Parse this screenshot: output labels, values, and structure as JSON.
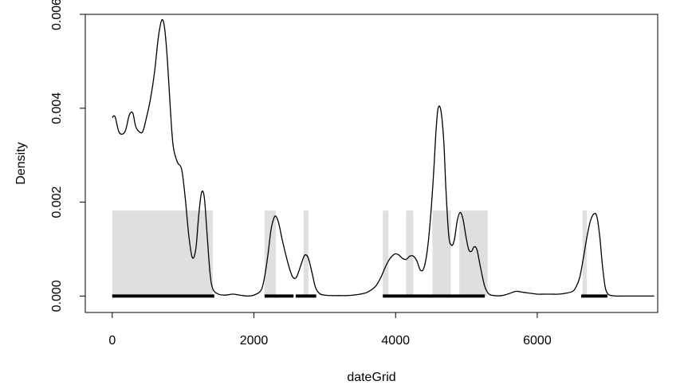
{
  "chart_data": {
    "type": "line",
    "title": "",
    "xlabel": "dateGrid",
    "ylabel": "Density",
    "xlim": [
      -380,
      7700
    ],
    "ylim": [
      -0.00035,
      0.006
    ],
    "x_ticks": [
      0,
      2000,
      4000,
      6000
    ],
    "x_tick_labels": [
      "0",
      "2000",
      "4000",
      "6000"
    ],
    "y_ticks": [
      0.0,
      0.002,
      0.004,
      0.006
    ],
    "y_tick_labels": [
      "0.000",
      "0.002",
      "0.004",
      "0.006"
    ],
    "grid": false,
    "colors": {
      "line": "#000000",
      "band": "#d4d4d4",
      "segment": "#000000"
    },
    "series": [
      {
        "x": [
          0,
          40,
          100,
          180,
          240,
          290,
          330,
          380,
          430,
          480,
          540,
          600,
          650,
          700,
          740,
          780,
          820,
          860,
          920,
          980,
          1030,
          1080,
          1130,
          1180,
          1220,
          1260,
          1300,
          1340,
          1380,
          1420,
          1500,
          1600,
          1700,
          1800,
          1900,
          2000,
          2100,
          2150,
          2200,
          2240,
          2280,
          2310,
          2350,
          2400,
          2450,
          2500,
          2550,
          2600,
          2650,
          2700,
          2730,
          2770,
          2820,
          2870,
          2930,
          3000,
          3100,
          3200,
          3300,
          3400,
          3500,
          3600,
          3700,
          3750,
          3800,
          3850,
          3900,
          3950,
          4000,
          4050,
          4100,
          4150,
          4200,
          4250,
          4300,
          4350,
          4400,
          4450,
          4500,
          4540,
          4570,
          4600,
          4640,
          4680,
          4710,
          4750,
          4790,
          4830,
          4870,
          4910,
          4950,
          4990,
          5030,
          5070,
          5110,
          5150,
          5200,
          5260,
          5320,
          5400,
          5500,
          5600,
          5700,
          5800,
          5900,
          6000,
          6100,
          6200,
          6300,
          6400,
          6500,
          6550,
          6600,
          6650,
          6700,
          6750,
          6800,
          6840,
          6880,
          6920,
          6960,
          7000,
          7050,
          7100,
          7200,
          7400,
          7650
        ],
        "values": [
          0.0038,
          0.00382,
          0.00348,
          0.0035,
          0.00385,
          0.0039,
          0.00362,
          0.0035,
          0.0035,
          0.00378,
          0.0042,
          0.0048,
          0.0055,
          0.00588,
          0.0057,
          0.005,
          0.004,
          0.0032,
          0.00285,
          0.0027,
          0.0021,
          0.0013,
          0.00082,
          0.001,
          0.0017,
          0.0022,
          0.0021,
          0.0013,
          0.0005,
          0.00015,
          4e-05,
          2e-05,
          4e-05,
          2e-05,
          0.0,
          2e-05,
          0.00012,
          0.0004,
          0.0009,
          0.0014,
          0.00165,
          0.0017,
          0.00155,
          0.0012,
          0.00088,
          0.0006,
          0.0004,
          0.0004,
          0.0006,
          0.00082,
          0.00088,
          0.0008,
          0.0005,
          0.00018,
          5e-05,
          2e-05,
          1e-05,
          1e-05,
          1e-05,
          2e-05,
          4e-05,
          8e-05,
          0.00018,
          0.00028,
          0.00042,
          0.0006,
          0.00075,
          0.00085,
          0.0009,
          0.00087,
          0.0008,
          0.00078,
          0.00085,
          0.00085,
          0.00075,
          0.00055,
          0.0006,
          0.001,
          0.0018,
          0.0027,
          0.0035,
          0.004,
          0.00395,
          0.0033,
          0.0023,
          0.0013,
          0.00108,
          0.0012,
          0.0016,
          0.00178,
          0.00165,
          0.0013,
          0.001,
          0.00095,
          0.00105,
          0.00098,
          0.0006,
          0.0002,
          4e-05,
          1e-05,
          1e-05,
          5e-05,
          0.0001,
          8e-05,
          6e-05,
          4e-05,
          4e-05,
          4e-05,
          4e-05,
          6e-05,
          0.0001,
          0.0002,
          0.0004,
          0.0008,
          0.00125,
          0.0016,
          0.00175,
          0.0017,
          0.0013,
          0.00065,
          0.00018,
          4e-05,
          1e-05,
          0.0,
          0.0,
          0.0,
          0.0
        ]
      }
    ],
    "bands": [
      {
        "x": [
          0,
          1420
        ],
        "height": 0.00182
      },
      {
        "x": [
          2150,
          2310
        ],
        "height": 0.00182
      },
      {
        "x": [
          2700,
          2770
        ],
        "height": 0.00182
      },
      {
        "x": [
          3820,
          3900
        ],
        "height": 0.00182
      },
      {
        "x": [
          4150,
          4250
        ],
        "height": 0.00182
      },
      {
        "x": [
          4520,
          4780
        ],
        "height": 0.00182
      },
      {
        "x": [
          4900,
          5300
        ],
        "height": 0.00182
      },
      {
        "x": [
          6640,
          6700
        ],
        "height": 0.00182
      }
    ],
    "segments": [
      {
        "x": [
          0,
          1440
        ]
      },
      {
        "x": [
          2150,
          2560
        ]
      },
      {
        "x": [
          2590,
          2880
        ]
      },
      {
        "x": [
          3820,
          5260
        ]
      },
      {
        "x": [
          6620,
          6990
        ]
      }
    ]
  }
}
